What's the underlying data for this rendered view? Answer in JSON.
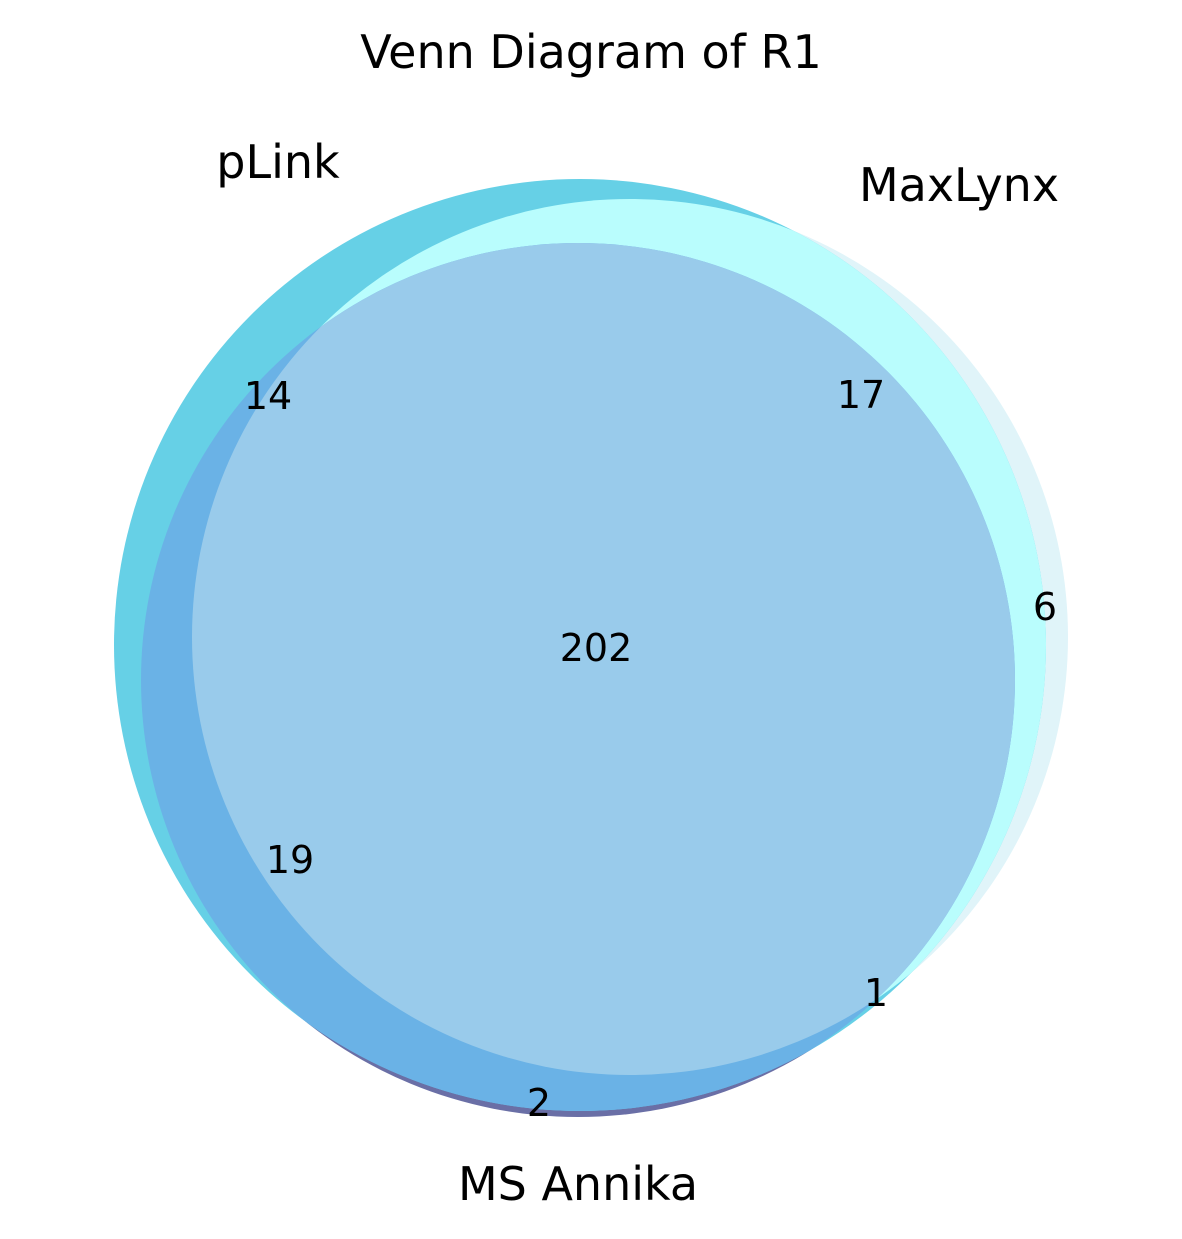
{
  "title": "Venn Diagram of R1",
  "sets": {
    "plink": {
      "label": "pLink",
      "color": "#66d0e6"
    },
    "maxlynx": {
      "label": "MaxLynx",
      "color": "#e0f4f9"
    },
    "msannika": {
      "label": "MS Annika",
      "color": "#6a6fa6"
    }
  },
  "regions": {
    "plink_only": "14",
    "maxlynx_only": "6",
    "msannika_only": "2",
    "plink_maxlynx": "17",
    "plink_msannika": "19",
    "maxlynx_msannika": "1",
    "all_three": "202"
  },
  "colors": {
    "plink_maxlynx": "#b9fdfd",
    "plink_msannika": "#6ab2e6",
    "all_three": "#99cbeb",
    "maxlynx_msannika": "#c5c6f5"
  }
}
